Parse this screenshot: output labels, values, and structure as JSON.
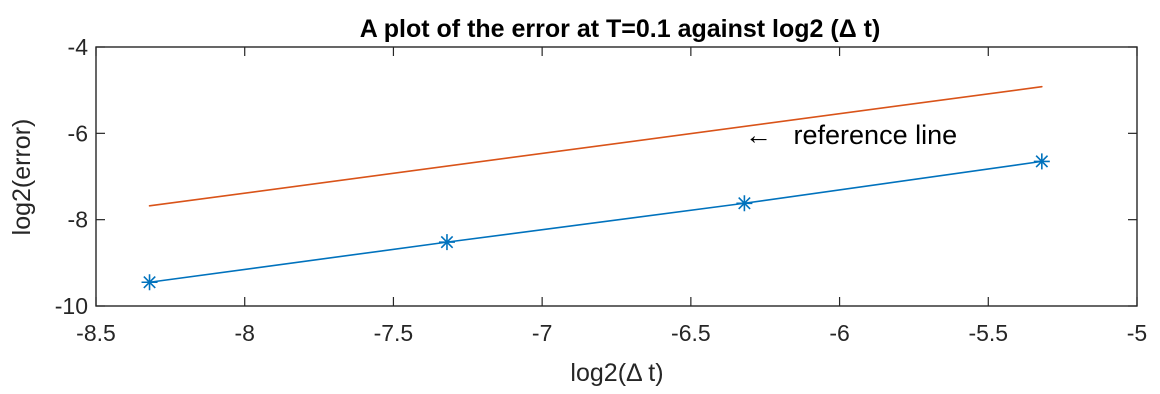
{
  "chart_data": {
    "type": "line",
    "title": "A plot of the error at T=0.1 against log2 (Δ t)",
    "xlabel": "log2(Δ t)",
    "ylabel": "log2(error)",
    "xlim": [
      -8.5,
      -5
    ],
    "ylim": [
      -10,
      -4
    ],
    "xticks": [
      -8.5,
      -8,
      -7.5,
      -7,
      -6.5,
      -6,
      -5.5,
      -5
    ],
    "xtick_labels": [
      "-8.5",
      "-8",
      "-7.5",
      "-7",
      "-6.5",
      "-6",
      "-5.5",
      "-5"
    ],
    "yticks": [
      -10,
      -8,
      -6,
      -4
    ],
    "ytick_labels": [
      "-10",
      "-8",
      "-6",
      "-4"
    ],
    "grid": false,
    "series": [
      {
        "color": "#0072BD",
        "marker": "asterisk",
        "x": [
          -8.32,
          -7.32,
          -6.32,
          -5.32
        ],
        "y": [
          -9.45,
          -8.52,
          -7.62,
          -6.65
        ]
      },
      {
        "color": "#D95319",
        "marker": "none",
        "x": [
          -8.32,
          -5.32
        ],
        "y": [
          -7.68,
          -4.92
        ]
      }
    ],
    "annotations": [
      {
        "arrow": "←",
        "text": "reference line",
        "x": -6.32,
        "y": -5.95
      }
    ]
  }
}
